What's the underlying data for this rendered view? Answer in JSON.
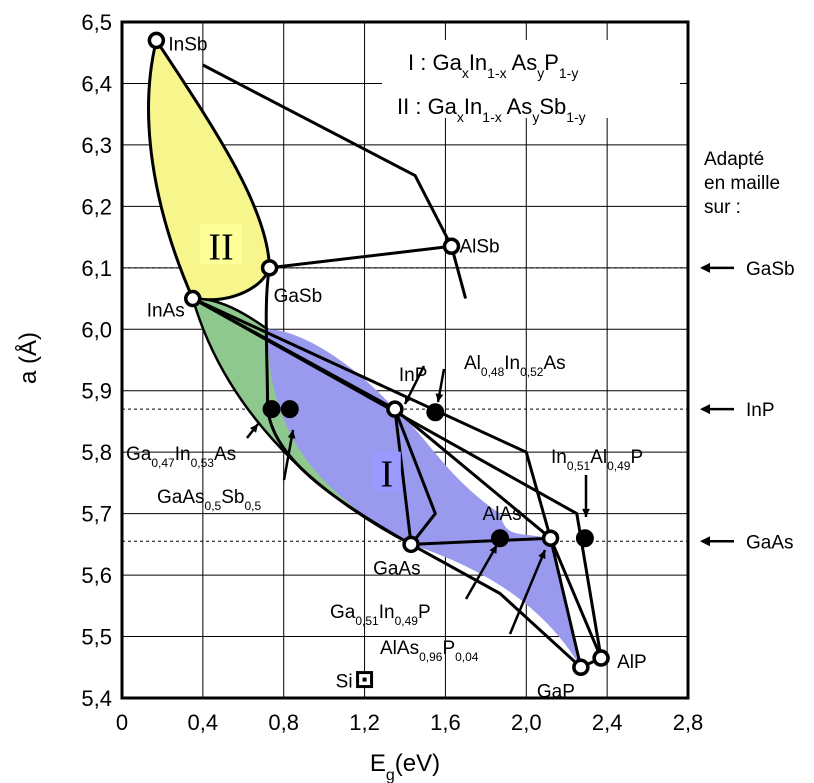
{
  "chart_data": {
    "type": "scatter",
    "title": "",
    "xlabel": "E",
    "xlabel_sub": "g",
    "xlabel_unit": "(eV)",
    "ylabel": "a (Å)",
    "xlim": [
      0,
      2.8
    ],
    "ylim": [
      5.4,
      6.5
    ],
    "grid": true,
    "x_tick_labels": [
      "0",
      "0,4",
      "0,8",
      "1,2",
      "1,6",
      "2,0",
      "2,4",
      "2,8"
    ],
    "x_tick_values": [
      0,
      0.4,
      0.8,
      1.2,
      1.6,
      2.0,
      2.4,
      2.8
    ],
    "y_tick_labels": [
      "5,4",
      "5,5",
      "5,6",
      "5,7",
      "5,8",
      "5,9",
      "6,0",
      "6,1",
      "6,2",
      "6,3",
      "6,4",
      "6,5"
    ],
    "y_tick_values": [
      5.4,
      5.5,
      5.6,
      5.7,
      5.8,
      5.9,
      6.0,
      6.1,
      6.2,
      6.3,
      6.4,
      6.5
    ],
    "legend": {
      "line1": {
        "prefix": "I : ",
        "parts": [
          [
            "Ga",
            ""
          ],
          [
            "x",
            "sub"
          ],
          [
            "In",
            ""
          ],
          [
            "1-x",
            "sub"
          ],
          [
            " As",
            ""
          ],
          [
            "y",
            "sub"
          ],
          [
            "P",
            ""
          ],
          [
            "1-y",
            "sub"
          ]
        ]
      },
      "line2": {
        "prefix": "II : ",
        "parts": [
          [
            "Ga",
            ""
          ],
          [
            "x",
            "sub"
          ],
          [
            "In",
            ""
          ],
          [
            "1-x",
            "sub"
          ],
          [
            " As",
            ""
          ],
          [
            "y",
            "sub"
          ],
          [
            "Sb",
            ""
          ],
          [
            "1-y",
            "sub"
          ]
        ]
      }
    },
    "region_labels": [
      {
        "text": "II",
        "x": 0.49,
        "y": 6.135,
        "color": "#ffff99"
      },
      {
        "text": "I",
        "x": 1.31,
        "y": 5.765,
        "color": "#9999ff"
      }
    ],
    "regions": {
      "II_fill": "#f6f68c",
      "I_green_fill": "#8ec88e",
      "I_blue_fill": "#9999ee"
    },
    "binary_compounds": [
      {
        "name": "InSb",
        "x": 0.17,
        "y": 6.47
      },
      {
        "name": "GaSb",
        "x": 0.73,
        "y": 6.1
      },
      {
        "name": "InAs",
        "x": 0.35,
        "y": 6.05
      },
      {
        "name": "AlSb",
        "x": 1.63,
        "y": 6.135
      },
      {
        "name": "InP",
        "x": 1.35,
        "y": 5.87
      },
      {
        "name": "GaAs",
        "x": 1.43,
        "y": 5.65
      },
      {
        "name": "AlAs",
        "x": 2.12,
        "y": 5.66
      },
      {
        "name": "GaP",
        "x": 2.27,
        "y": 5.45
      },
      {
        "name": "AlP",
        "x": 2.37,
        "y": 5.465
      }
    ],
    "lattice_matched_alloys": [
      {
        "name": "Ga0,47In0,53As",
        "x": 0.74,
        "y": 5.87
      },
      {
        "name": "GaAs0,5Sb0,5",
        "x": 0.83,
        "y": 5.87
      },
      {
        "name": "Al0,48In0,52As",
        "x": 1.55,
        "y": 5.865
      },
      {
        "name": "Ga0,51In0,49P",
        "x": 1.87,
        "y": 5.66
      },
      {
        "name": "In0,51Al0,49P",
        "x": 2.29,
        "y": 5.66
      }
    ],
    "silicon": {
      "name": "Si",
      "x": 1.2,
      "y": 5.43
    },
    "matched_lines": [
      {
        "substrate": "GaSb",
        "y": 6.1
      },
      {
        "substrate": "InP",
        "y": 5.87
      },
      {
        "substrate": "GaAs",
        "y": 5.655
      }
    ],
    "side_note": [
      "Adapté",
      "en maille",
      "sur :"
    ],
    "point_labels": {
      "InSb": "InSb",
      "GaSb": "GaSb",
      "InAs": "InAs",
      "AlSb": "AlSb",
      "InP": "InP",
      "GaAs": "GaAs",
      "AlAs": "AlAs",
      "GaP": "GaP",
      "AlP": "AlP",
      "Si": "Si"
    }
  }
}
